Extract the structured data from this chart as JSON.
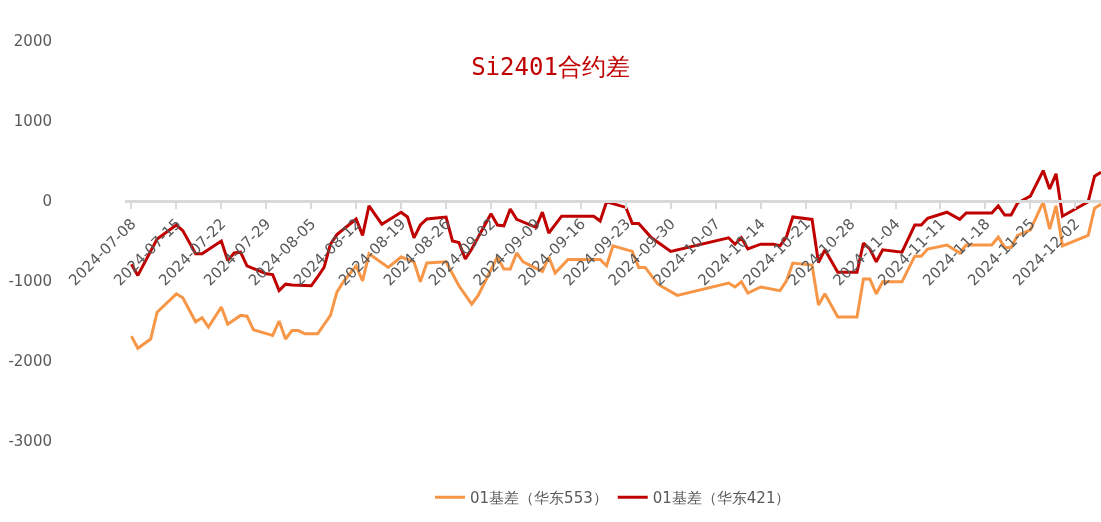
{
  "chart_data": {
    "type": "line",
    "title": "Si2401合约差",
    "xlim": [
      "2024-07-07",
      "2024-12-06"
    ],
    "xticks": [
      "2024-07-08",
      "2024-07-15",
      "2024-07-22",
      "2024-07-29",
      "2024-08-05",
      "2024-08-12",
      "2024-08-19",
      "2024-08-26",
      "2024-09-02",
      "2024-09-09",
      "2024-09-16",
      "2024-09-23",
      "2024-09-30",
      "2024-10-07",
      "2024-10-14",
      "2024-10-21",
      "2024-10-28",
      "2024-11-04",
      "2024-11-11",
      "2024-11-18",
      "2024-11-25",
      "2024-12-02"
    ],
    "ylim": [
      -3000,
      2000
    ],
    "yticks": [
      -3000,
      -2000,
      -1000,
      0,
      1000,
      2000
    ],
    "legend": "bottom",
    "line_style": "solid",
    "marker": "none",
    "series": [
      {
        "name": "01基差（华东553）",
        "color": "#f79646",
        "x": [
          "2024-07-08",
          "2024-07-09",
          "2024-07-11",
          "2024-07-12",
          "2024-07-15",
          "2024-07-16",
          "2024-07-18",
          "2024-07-19",
          "2024-07-20",
          "2024-07-22",
          "2024-07-23",
          "2024-07-25",
          "2024-07-26",
          "2024-07-27",
          "2024-07-30",
          "2024-07-31",
          "2024-08-01",
          "2024-08-02",
          "2024-08-03",
          "2024-08-04",
          "2024-08-06",
          "2024-08-08",
          "2024-08-09",
          "2024-08-10",
          "2024-08-12",
          "2024-08-13",
          "2024-08-14",
          "2024-08-17",
          "2024-08-19",
          "2024-08-21",
          "2024-08-22",
          "2024-08-23",
          "2024-08-26",
          "2024-08-28",
          "2024-08-30",
          "2024-08-31",
          "2024-09-03",
          "2024-09-04",
          "2024-09-05",
          "2024-09-06",
          "2024-09-07",
          "2024-09-10",
          "2024-09-11",
          "2024-09-12",
          "2024-09-14",
          "2024-09-19",
          "2024-09-20",
          "2024-09-21",
          "2024-09-24",
          "2024-09-25",
          "2024-09-26",
          "2024-09-28",
          "2024-10-01",
          "2024-10-09",
          "2024-10-10",
          "2024-10-11",
          "2024-10-12",
          "2024-10-14",
          "2024-10-17",
          "2024-10-18",
          "2024-10-19",
          "2024-10-22",
          "2024-10-23",
          "2024-10-24",
          "2024-10-26",
          "2024-10-29",
          "2024-10-30",
          "2024-10-31",
          "2024-11-01",
          "2024-11-02",
          "2024-11-05",
          "2024-11-07",
          "2024-11-08",
          "2024-11-09",
          "2024-11-12",
          "2024-11-14",
          "2024-11-15",
          "2024-11-19",
          "2024-11-20",
          "2024-11-21",
          "2024-11-22",
          "2024-11-23",
          "2024-11-25",
          "2024-11-27",
          "2024-11-28",
          "2024-11-29",
          "2024-11-30",
          "2024-12-04",
          "2024-12-05",
          "2024-12-06"
        ],
        "values": [
          -1690,
          -1840,
          -1725,
          -1390,
          -1160,
          -1210,
          -1510,
          -1460,
          -1575,
          -1325,
          -1540,
          -1430,
          -1440,
          -1610,
          -1680,
          -1500,
          -1725,
          -1620,
          -1620,
          -1660,
          -1660,
          -1430,
          -1140,
          -1010,
          -810,
          -1000,
          -660,
          -830,
          -700,
          -760,
          -1010,
          -775,
          -760,
          -1060,
          -1290,
          -1180,
          -700,
          -850,
          -850,
          -650,
          -760,
          -880,
          -700,
          -900,
          -730,
          -730,
          -810,
          -560,
          -630,
          -830,
          -830,
          -1040,
          -1180,
          -1025,
          -1075,
          -1010,
          -1150,
          -1075,
          -1120,
          -1000,
          -775,
          -800,
          -1300,
          -1160,
          -1450,
          -1450,
          -975,
          -975,
          -1160,
          -1010,
          -1010,
          -690,
          -690,
          -600,
          -550,
          -650,
          -550,
          -550,
          -450,
          -580,
          -580,
          -430,
          -360,
          -15,
          -350,
          -60,
          -560,
          -430,
          -90,
          -40
        ]
      },
      {
        "name": "01基差（华东421）",
        "color": "#c00000",
        "x": [
          "2024-07-08",
          "2024-07-09",
          "2024-07-12",
          "2024-07-15",
          "2024-07-16",
          "2024-07-18",
          "2024-07-19",
          "2024-07-22",
          "2024-07-23",
          "2024-07-24",
          "2024-07-25",
          "2024-07-26",
          "2024-07-29",
          "2024-07-30",
          "2024-07-31",
          "2024-08-01",
          "2024-08-02",
          "2024-08-05",
          "2024-08-06",
          "2024-08-07",
          "2024-08-08",
          "2024-08-09",
          "2024-08-12",
          "2024-08-13",
          "2024-08-14",
          "2024-08-16",
          "2024-08-19",
          "2024-08-20",
          "2024-08-21",
          "2024-08-22",
          "2024-08-23",
          "2024-08-26",
          "2024-08-27",
          "2024-08-28",
          "2024-08-29",
          "2024-08-30",
          "2024-09-02",
          "2024-09-03",
          "2024-09-04",
          "2024-09-05",
          "2024-09-06",
          "2024-09-09",
          "2024-09-10",
          "2024-09-11",
          "2024-09-13",
          "2024-09-18",
          "2024-09-19",
          "2024-09-20",
          "2024-09-23",
          "2024-09-24",
          "2024-09-25",
          "2024-09-27",
          "2024-09-30",
          "2024-10-09",
          "2024-10-10",
          "2024-10-11",
          "2024-10-12",
          "2024-10-14",
          "2024-10-16",
          "2024-10-17",
          "2024-10-18",
          "2024-10-19",
          "2024-10-22",
          "2024-10-23",
          "2024-10-24",
          "2024-10-26",
          "2024-10-29",
          "2024-10-30",
          "2024-10-31",
          "2024-11-01",
          "2024-11-02",
          "2024-11-05",
          "2024-11-07",
          "2024-11-08",
          "2024-11-09",
          "2024-11-12",
          "2024-11-14",
          "2024-11-15",
          "2024-11-19",
          "2024-11-20",
          "2024-11-21",
          "2024-11-22",
          "2024-11-23",
          "2024-11-25",
          "2024-11-27",
          "2024-11-28",
          "2024-11-29",
          "2024-11-30",
          "2024-12-04",
          "2024-12-05",
          "2024-12-06"
        ],
        "values": [
          -790,
          -930,
          -475,
          -300,
          -370,
          -660,
          -660,
          -500,
          -745,
          -650,
          -640,
          -810,
          -910,
          -920,
          -1120,
          -1040,
          -1050,
          -1060,
          -950,
          -830,
          -540,
          -420,
          -225,
          -430,
          -60,
          -290,
          -140,
          -200,
          -460,
          -300,
          -225,
          -200,
          -500,
          -520,
          -725,
          -600,
          -160,
          -300,
          -310,
          -100,
          -230,
          -330,
          -140,
          -400,
          -190,
          -190,
          -250,
          -10,
          -80,
          -280,
          -280,
          -460,
          -630,
          -460,
          -540,
          -460,
          -600,
          -540,
          -540,
          -560,
          -450,
          -200,
          -230,
          -770,
          -610,
          -890,
          -890,
          -525,
          -600,
          -760,
          -610,
          -640,
          -300,
          -300,
          -215,
          -140,
          -230,
          -150,
          -150,
          -60,
          -175,
          -175,
          -25,
          60,
          380,
          150,
          340,
          -190,
          -10,
          310,
          360
        ]
      }
    ]
  }
}
